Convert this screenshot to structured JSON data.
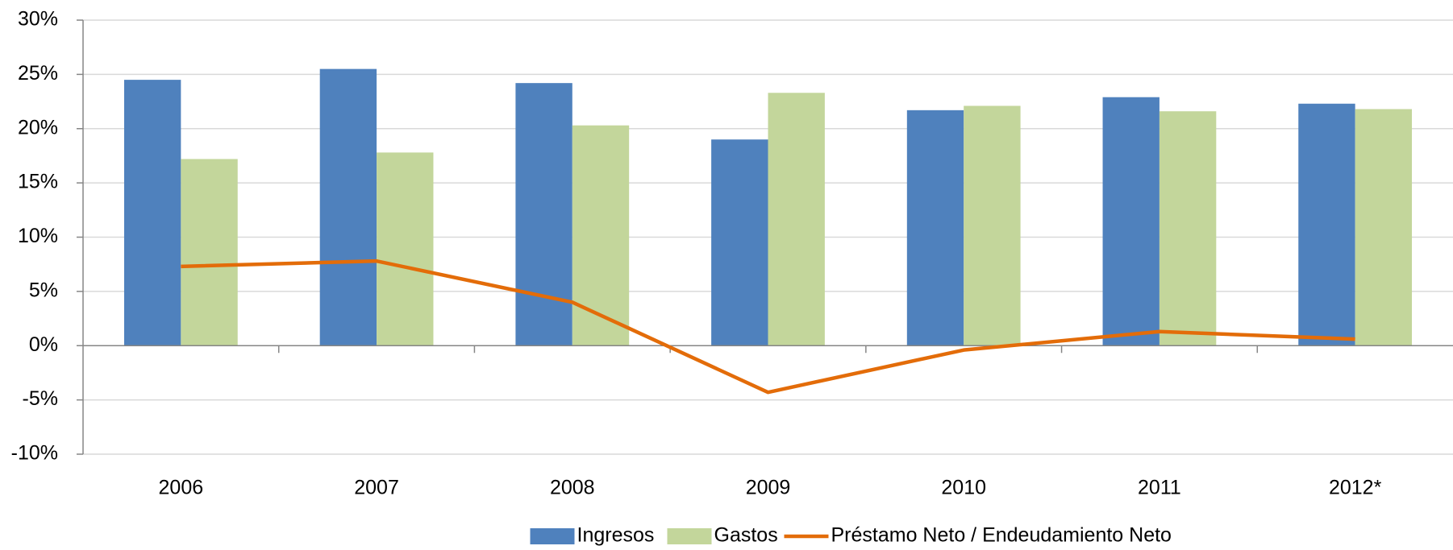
{
  "chart_data": {
    "type": "bar-line",
    "categories": [
      "2006",
      "2007",
      "2008",
      "2009",
      "2010",
      "2011",
      "2012*"
    ],
    "series": [
      {
        "name": "Ingresos",
        "type": "bar",
        "color": "#4f81bd",
        "values": [
          24.5,
          25.5,
          24.2,
          19.0,
          21.7,
          22.9,
          22.3
        ]
      },
      {
        "name": "Gastos",
        "type": "bar",
        "color": "#c3d69b",
        "values": [
          17.2,
          17.8,
          20.3,
          23.3,
          22.1,
          21.6,
          21.8
        ]
      },
      {
        "name": "Préstamo Neto / Endeudamiento Neto",
        "type": "line",
        "color": "#e36c09",
        "values": [
          7.3,
          7.8,
          4.0,
          -4.3,
          -0.4,
          1.3,
          0.6
        ]
      }
    ],
    "ylim": [
      -10,
      30
    ],
    "yticks": [
      {
        "value": -10,
        "label": "-10%"
      },
      {
        "value": -5,
        "label": "-5%"
      },
      {
        "value": 0,
        "label": "0%"
      },
      {
        "value": 5,
        "label": "5%"
      },
      {
        "value": 10,
        "label": "10%"
      },
      {
        "value": 15,
        "label": "15%"
      },
      {
        "value": 20,
        "label": "20%"
      },
      {
        "value": 25,
        "label": "25%"
      },
      {
        "value": 30,
        "label": "30%"
      }
    ],
    "grid": true,
    "legend": "bottom"
  }
}
